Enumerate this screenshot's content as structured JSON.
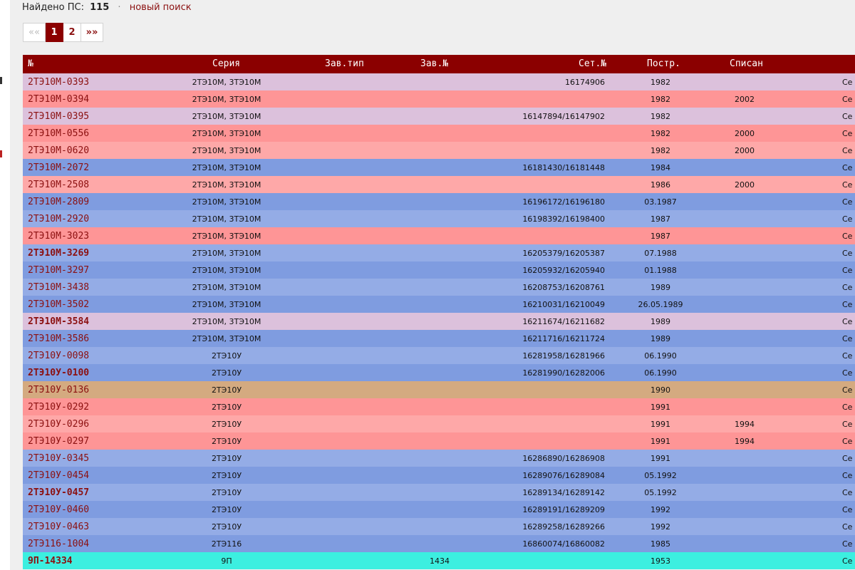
{
  "results": {
    "label": "Найдено ПС:",
    "count": "115",
    "separator": "·",
    "new_search_link": "новый поиск"
  },
  "pagination": {
    "first": "««",
    "current": "1",
    "page2": "2",
    "next": "»»"
  },
  "colors": {
    "header_bg": "#8b0000",
    "link": "#8b1010",
    "status_lilac": "#dcc1dc",
    "status_red": "#fe9596",
    "status_pink": "#fea8a8",
    "status_blue_dark": "#7f9ce0",
    "status_blue_light": "#94ace6",
    "status_tan": "#d4aa80",
    "status_cyan": "#3cefe0"
  },
  "table": {
    "columns": {
      "num": "№",
      "series": "Серия",
      "zav_type": "Зав.тип",
      "zav_num": "Зав.№",
      "set_num": "Сет.№",
      "built": "Постр.",
      "written_off": "Списан"
    },
    "rows": [
      {
        "num": "2ТЭ10М-0393",
        "series": "2ТЭ10М, 3ТЭ10М",
        "zav_num": "",
        "set": "16174906",
        "built": "1982",
        "off": "",
        "extra": "Се",
        "color": "#dcc1dc",
        "bold": false
      },
      {
        "num": "2ТЭ10М-0394",
        "series": "2ТЭ10М, 3ТЭ10М",
        "zav_num": "",
        "set": "",
        "built": "1982",
        "off": "2002",
        "extra": "Се",
        "color": "#fe9596",
        "bold": false
      },
      {
        "num": "2ТЭ10М-0395",
        "series": "2ТЭ10М, 3ТЭ10М",
        "zav_num": "",
        "set": "16147894/16147902",
        "built": "1982",
        "off": "",
        "extra": "Се",
        "color": "#dcc1dc",
        "bold": false
      },
      {
        "num": "2ТЭ10М-0556",
        "series": "2ТЭ10М, 3ТЭ10М",
        "zav_num": "",
        "set": "",
        "built": "1982",
        "off": "2000",
        "extra": "Се",
        "color": "#fe9596",
        "bold": false
      },
      {
        "num": "2ТЭ10М-0620",
        "series": "2ТЭ10М, 3ТЭ10М",
        "zav_num": "",
        "set": "",
        "built": "1982",
        "off": "2000",
        "extra": "Се",
        "color": "#fea8a8",
        "bold": false
      },
      {
        "num": "2ТЭ10М-2072",
        "series": "2ТЭ10М, 3ТЭ10М",
        "zav_num": "",
        "set": "16181430/16181448",
        "built": "1984",
        "off": "",
        "extra": "Се",
        "color": "#7f9ce0",
        "bold": false
      },
      {
        "num": "2ТЭ10М-2508",
        "series": "2ТЭ10М, 3ТЭ10М",
        "zav_num": "",
        "set": "",
        "built": "1986",
        "off": "2000",
        "extra": "Се",
        "color": "#fea8a8",
        "bold": false
      },
      {
        "num": "2ТЭ10М-2809",
        "series": "2ТЭ10М, 3ТЭ10М",
        "zav_num": "",
        "set": "16196172/16196180",
        "built": "03.1987",
        "off": "",
        "extra": "Се",
        "color": "#7f9ce0",
        "bold": false
      },
      {
        "num": "2ТЭ10М-2920",
        "series": "2ТЭ10М, 3ТЭ10М",
        "zav_num": "",
        "set": "16198392/16198400",
        "built": "1987",
        "off": "",
        "extra": "Се",
        "color": "#94ace6",
        "bold": false
      },
      {
        "num": "2ТЭ10М-3023",
        "series": "2ТЭ10М, 3ТЭ10М",
        "zav_num": "",
        "set": "",
        "built": "1987",
        "off": "",
        "extra": "Се",
        "color": "#fe9596",
        "bold": false
      },
      {
        "num": "2ТЭ10М-3269",
        "series": "2ТЭ10М, 3ТЭ10М",
        "zav_num": "",
        "set": "16205379/16205387",
        "built": "07.1988",
        "off": "",
        "extra": "Се",
        "color": "#94ace6",
        "bold": true
      },
      {
        "num": "2ТЭ10М-3297",
        "series": "2ТЭ10М, 3ТЭ10М",
        "zav_num": "",
        "set": "16205932/16205940",
        "built": "01.1988",
        "off": "",
        "extra": "Се",
        "color": "#7f9ce0",
        "bold": false
      },
      {
        "num": "2ТЭ10М-3438",
        "series": "2ТЭ10М, 3ТЭ10М",
        "zav_num": "",
        "set": "16208753/16208761",
        "built": "1989",
        "off": "",
        "extra": "Се",
        "color": "#94ace6",
        "bold": false
      },
      {
        "num": "2ТЭ10М-3502",
        "series": "2ТЭ10М, 3ТЭ10М",
        "zav_num": "",
        "set": "16210031/16210049",
        "built": "26.05.1989",
        "off": "",
        "extra": "Се",
        "color": "#7f9ce0",
        "bold": false
      },
      {
        "num": "2ТЭ10М-3584",
        "series": "2ТЭ10М, 3ТЭ10М",
        "zav_num": "",
        "set": "16211674/16211682",
        "built": "1989",
        "off": "",
        "extra": "Се",
        "color": "#dcc1dc",
        "bold": true
      },
      {
        "num": "2ТЭ10М-3586",
        "series": "2ТЭ10М, 3ТЭ10М",
        "zav_num": "",
        "set": "16211716/16211724",
        "built": "1989",
        "off": "",
        "extra": "Се",
        "color": "#7f9ce0",
        "bold": false
      },
      {
        "num": "2ТЭ10У-0098",
        "series": "2ТЭ10У",
        "zav_num": "",
        "set": "16281958/16281966",
        "built": "06.1990",
        "off": "",
        "extra": "Се",
        "color": "#94ace6",
        "bold": false
      },
      {
        "num": "2ТЭ10У-0100",
        "series": "2ТЭ10У",
        "zav_num": "",
        "set": "16281990/16282006",
        "built": "06.1990",
        "off": "",
        "extra": "Се",
        "color": "#7f9ce0",
        "bold": true
      },
      {
        "num": "2ТЭ10У-0136",
        "series": "2ТЭ10У",
        "zav_num": "",
        "set": "",
        "built": "1990",
        "off": "",
        "extra": "Се",
        "color": "#d4aa80",
        "bold": false
      },
      {
        "num": "2ТЭ10У-0292",
        "series": "2ТЭ10У",
        "zav_num": "",
        "set": "",
        "built": "1991",
        "off": "",
        "extra": "Се",
        "color": "#fe9596",
        "bold": false
      },
      {
        "num": "2ТЭ10У-0296",
        "series": "2ТЭ10У",
        "zav_num": "",
        "set": "",
        "built": "1991",
        "off": "1994",
        "extra": "Се",
        "color": "#fea8a8",
        "bold": false
      },
      {
        "num": "2ТЭ10У-0297",
        "series": "2ТЭ10У",
        "zav_num": "",
        "set": "",
        "built": "1991",
        "off": "1994",
        "extra": "Се",
        "color": "#fe9596",
        "bold": false
      },
      {
        "num": "2ТЭ10У-0345",
        "series": "2ТЭ10У",
        "zav_num": "",
        "set": "16286890/16286908",
        "built": "1991",
        "off": "",
        "extra": "Се",
        "color": "#94ace6",
        "bold": false
      },
      {
        "num": "2ТЭ10У-0454",
        "series": "2ТЭ10У",
        "zav_num": "",
        "set": "16289076/16289084",
        "built": "05.1992",
        "off": "",
        "extra": "Се",
        "color": "#7f9ce0",
        "bold": false
      },
      {
        "num": "2ТЭ10У-0457",
        "series": "2ТЭ10У",
        "zav_num": "",
        "set": "16289134/16289142",
        "built": "05.1992",
        "off": "",
        "extra": "Се",
        "color": "#94ace6",
        "bold": true
      },
      {
        "num": "2ТЭ10У-0460",
        "series": "2ТЭ10У",
        "zav_num": "",
        "set": "16289191/16289209",
        "built": "1992",
        "off": "",
        "extra": "Се",
        "color": "#7f9ce0",
        "bold": false
      },
      {
        "num": "2ТЭ10У-0463",
        "series": "2ТЭ10У",
        "zav_num": "",
        "set": "16289258/16289266",
        "built": "1992",
        "off": "",
        "extra": "Се",
        "color": "#94ace6",
        "bold": false
      },
      {
        "num": "2ТЭ116-1004",
        "series": "2ТЭ116",
        "zav_num": "",
        "set": "16860074/16860082",
        "built": "1985",
        "off": "",
        "extra": "Се",
        "color": "#7f9ce0",
        "bold": false
      },
      {
        "num": "9П-14334",
        "series": "9П",
        "zav_num": "1434",
        "set": "",
        "built": "1953",
        "off": "",
        "extra": "Се",
        "color": "#3cefe0",
        "bold": true
      }
    ]
  }
}
